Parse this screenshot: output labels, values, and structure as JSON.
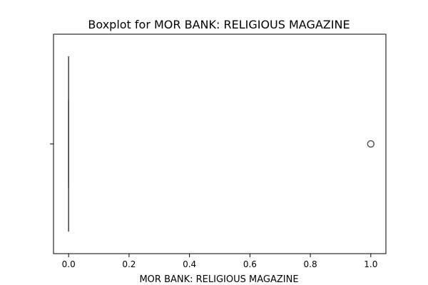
{
  "chart_data": {
    "type": "box",
    "title": "Boxplot for MOR BANK: RELIGIOUS MAGAZINE",
    "xlabel": "MOR BANK: RELIGIOUS MAGAZINE",
    "ylabel": "",
    "orientation": "horizontal",
    "xlim": [
      -0.05,
      1.05
    ],
    "xticks": [
      0.0,
      0.2,
      0.4,
      0.6,
      0.8,
      1.0
    ],
    "xtick_labels": [
      "0.0",
      "0.2",
      "0.4",
      "0.6",
      "0.8",
      "1.0"
    ],
    "grid": false,
    "series": [
      {
        "min": 0.0,
        "q1": 0.0,
        "median": 0.0,
        "q3": 0.0,
        "max": 0.0,
        "outliers": [
          1.0
        ]
      }
    ],
    "colors": {
      "box_line": "#3f3f3f",
      "axes": "#000000"
    }
  }
}
